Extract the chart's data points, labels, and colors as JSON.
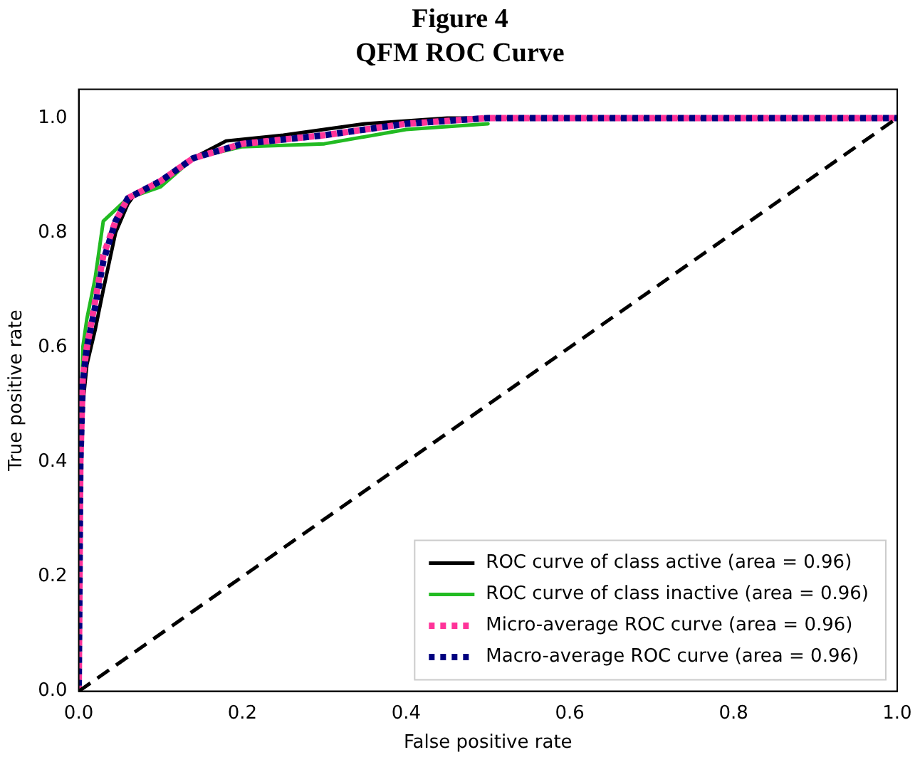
{
  "chart_data": {
    "type": "line",
    "title": "Figure 4",
    "subtitle": "QFM ROC Curve",
    "xlabel": "False positive rate",
    "ylabel": "True positive rate",
    "xlim": [
      0,
      1
    ],
    "ylim": [
      0,
      1.05
    ],
    "xticks": [
      {
        "value": 0,
        "label": "0.0"
      },
      0.2,
      0.4,
      0.6,
      0.8,
      {
        "value": 1,
        "label": "1.0"
      }
    ],
    "yticks": [
      {
        "value": 0,
        "label": "0.0"
      },
      0.2,
      0.4,
      0.6,
      0.8,
      {
        "value": 1,
        "label": "1.0"
      }
    ],
    "legend": "bottom right",
    "grid": false,
    "marker": "none",
    "series": [
      {
        "name": "ROC curve of class active (area = 0.96)",
        "color": "#000000",
        "line_style": "solid",
        "x": [
          0,
          0.002,
          0.005,
          0.01,
          0.02,
          0.03,
          0.045,
          0.06,
          0.07,
          0.1,
          0.12,
          0.14,
          0.18,
          0.25,
          0.35,
          0.45,
          1
        ],
        "values": [
          0,
          0.35,
          0.5,
          0.57,
          0.63,
          0.7,
          0.8,
          0.85,
          0.87,
          0.89,
          0.91,
          0.93,
          0.96,
          0.97,
          0.99,
          1,
          1
        ]
      },
      {
        "name": "ROC curve of class inactive (area = 0.96)",
        "color": "#22bb22",
        "line_style": "solid",
        "x": [
          0,
          0.002,
          0.005,
          0.01,
          0.02,
          0.03,
          0.06,
          0.1,
          0.14,
          0.2,
          0.3,
          0.4,
          0.5
        ],
        "values": [
          0,
          0.45,
          0.6,
          0.65,
          0.72,
          0.82,
          0.86,
          0.88,
          0.93,
          0.95,
          0.955,
          0.98,
          0.99
        ]
      },
      {
        "name": "Micro-average ROC curve (area = 0.96)",
        "color": "#ff3399",
        "line_style": "dotted",
        "x": [
          0,
          0.002,
          0.005,
          0.01,
          0.02,
          0.03,
          0.045,
          0.06,
          0.1,
          0.14,
          0.2,
          0.3,
          0.4,
          0.5,
          1
        ],
        "values": [
          0,
          0.4,
          0.55,
          0.6,
          0.68,
          0.76,
          0.82,
          0.86,
          0.89,
          0.93,
          0.955,
          0.97,
          0.99,
          1,
          1
        ]
      },
      {
        "name": "Macro-average ROC curve (area = 0.96)",
        "color": "#000080",
        "line_style": "dotted",
        "x": [
          0,
          0.002,
          0.005,
          0.01,
          0.02,
          0.03,
          0.045,
          0.06,
          0.1,
          0.14,
          0.2,
          0.3,
          0.4,
          0.5,
          1
        ],
        "values": [
          0,
          0.4,
          0.54,
          0.6,
          0.67,
          0.75,
          0.82,
          0.86,
          0.89,
          0.93,
          0.955,
          0.97,
          0.99,
          1,
          1
        ]
      },
      {
        "color": "#000000",
        "line_style": "dashed",
        "x": [
          0,
          1
        ],
        "values": [
          0,
          1
        ]
      }
    ]
  }
}
